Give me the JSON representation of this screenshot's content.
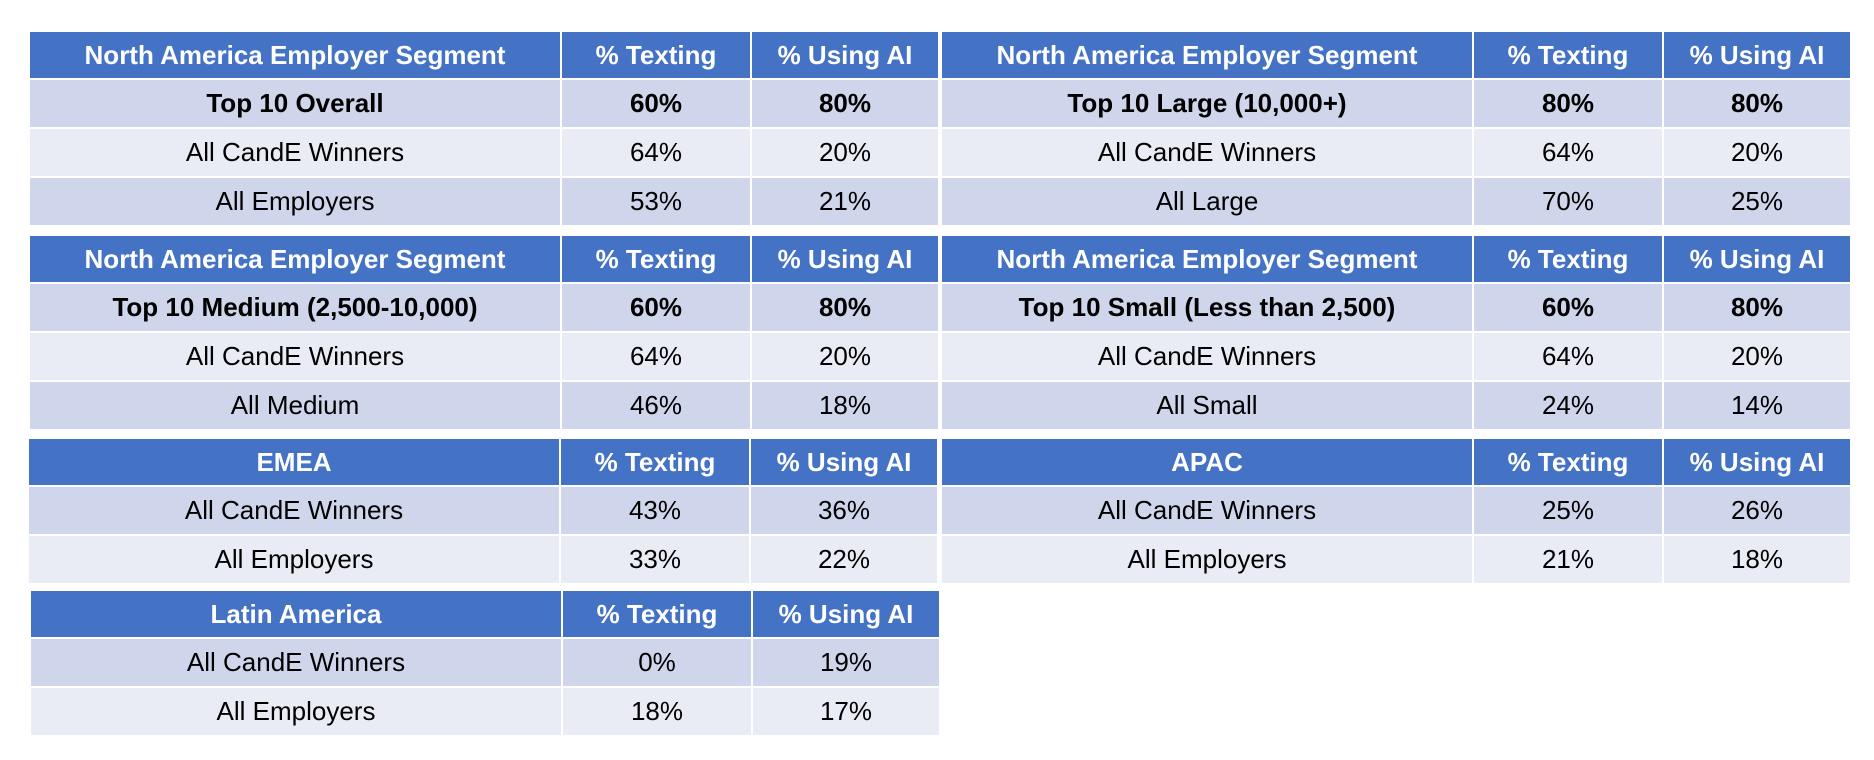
{
  "tables": {
    "overall": {
      "header": [
        "North America Employer Segment",
        "% Texting",
        "% Using AI"
      ],
      "rows": [
        [
          "Top 10 Overall",
          "60%",
          "80%"
        ],
        [
          "All CandE Winners",
          "64%",
          "20%"
        ],
        [
          "All Employers",
          "53%",
          "21%"
        ]
      ]
    },
    "large": {
      "header": [
        "North America Employer Segment",
        "% Texting",
        "% Using AI"
      ],
      "rows": [
        [
          "Top 10 Large (10,000+)",
          "80%",
          "80%"
        ],
        [
          "All CandE Winners",
          "64%",
          "20%"
        ],
        [
          "All Large",
          "70%",
          "25%"
        ]
      ]
    },
    "medium": {
      "header": [
        "North America Employer Segment",
        "% Texting",
        "% Using AI"
      ],
      "rows": [
        [
          "Top 10 Medium (2,500-10,000)",
          "60%",
          "80%"
        ],
        [
          "All CandE Winners",
          "64%",
          "20%"
        ],
        [
          "All Medium",
          "46%",
          "18%"
        ]
      ]
    },
    "small": {
      "header": [
        "North America Employer Segment",
        "% Texting",
        "% Using AI"
      ],
      "rows": [
        [
          "Top 10 Small (Less than 2,500)",
          "60%",
          "80%"
        ],
        [
          "All CandE Winners",
          "64%",
          "20%"
        ],
        [
          "All Small",
          "24%",
          "14%"
        ]
      ]
    },
    "emea": {
      "header": [
        "EMEA",
        "% Texting",
        "% Using AI"
      ],
      "rows": [
        [
          "All CandE Winners",
          "43%",
          "36%"
        ],
        [
          "All Employers",
          "33%",
          "22%"
        ]
      ]
    },
    "apac": {
      "header": [
        "APAC",
        "% Texting",
        "% Using AI"
      ],
      "rows": [
        [
          "All CandE Winners",
          "25%",
          "26%"
        ],
        [
          "All Employers",
          "21%",
          "18%"
        ]
      ]
    },
    "latam": {
      "header": [
        "Latin America",
        "% Texting",
        "% Using AI"
      ],
      "rows": [
        [
          "All CandE Winners",
          "0%",
          "19%"
        ],
        [
          "All Employers",
          "18%",
          "17%"
        ]
      ]
    }
  },
  "colors": {
    "header_bg": "#4472C4",
    "band_dark": "#CFD5EA",
    "band_light": "#E9EBF5"
  }
}
